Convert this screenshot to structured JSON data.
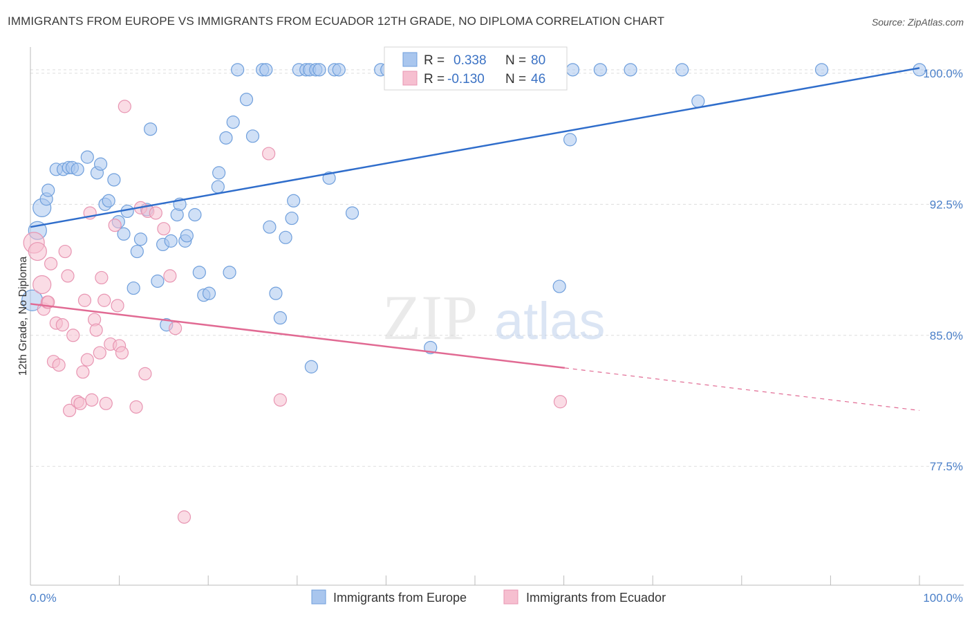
{
  "header": {
    "title": "IMMIGRANTS FROM EUROPE VS IMMIGRANTS FROM ECUADOR 12TH GRADE, NO DIPLOMA CORRELATION CHART",
    "source": "Source: ZipAtlas.com"
  },
  "watermark": {
    "zip": "ZIP",
    "atlas": "atlas"
  },
  "colors": {
    "europe_fill": "#a9c6ee",
    "europe_stroke": "#6f9fdc",
    "europe_line": "#2f6dcb",
    "ecuador_fill": "#f6bfd0",
    "ecuador_stroke": "#e895b2",
    "ecuador_line": "#e16a93",
    "tick_text": "#4a7fc8",
    "grid": "#dddddd"
  },
  "legend_box": {
    "rows": [
      {
        "r_label": "R =",
        "r_value": "0.338",
        "n_label": "N =",
        "n_value": "80"
      },
      {
        "r_label": "R =",
        "r_value": "-0.130",
        "n_label": "N =",
        "n_value": "46"
      }
    ]
  },
  "chart_data": {
    "type": "scatter",
    "title": "IMMIGRANTS FROM EUROPE VS IMMIGRANTS FROM ECUADOR 12TH GRADE, NO DIPLOMA CORRELATION CHART",
    "xlabel": "",
    "ylabel": "12th Grade, No Diploma",
    "xlim": [
      0,
      100
    ],
    "ylim": [
      70.7,
      101.5
    ],
    "x_tick_labels": [
      "0.0%",
      "100.0%"
    ],
    "y_ticks": [
      77.5,
      85.0,
      92.5,
      100.0
    ],
    "y_tick_labels": [
      "77.5%",
      "85.0%",
      "92.5%",
      "100.0%"
    ],
    "grid": true,
    "legend_placement": "bottom-center",
    "series": [
      {
        "name": "Immigrants from Europe",
        "R": 0.338,
        "N": 80,
        "trend": {
          "x": [
            0,
            100
          ],
          "y": [
            91.2,
            100.3
          ],
          "solid_to": 100
        },
        "points": [
          [
            0.2,
            87.0
          ],
          [
            0.8,
            91.0
          ],
          [
            1.3,
            92.3
          ],
          [
            1.8,
            92.8
          ],
          [
            2.0,
            93.3
          ],
          [
            2.9,
            94.5
          ],
          [
            3.7,
            94.5
          ],
          [
            4.3,
            94.6
          ],
          [
            4.7,
            94.6
          ],
          [
            5.3,
            94.5
          ],
          [
            6.4,
            95.2
          ],
          [
            7.5,
            94.3
          ],
          [
            7.9,
            94.8
          ],
          [
            8.4,
            92.5
          ],
          [
            8.8,
            92.7
          ],
          [
            9.4,
            93.9
          ],
          [
            9.9,
            91.5
          ],
          [
            10.5,
            90.8
          ],
          [
            10.9,
            92.1
          ],
          [
            11.6,
            87.7
          ],
          [
            12.0,
            89.8
          ],
          [
            12.4,
            90.5
          ],
          [
            13.1,
            92.2
          ],
          [
            13.5,
            96.8
          ],
          [
            14.3,
            88.1
          ],
          [
            14.9,
            90.2
          ],
          [
            15.3,
            85.6
          ],
          [
            15.8,
            90.4
          ],
          [
            16.5,
            91.9
          ],
          [
            16.8,
            92.5
          ],
          [
            17.4,
            90.4
          ],
          [
            17.6,
            90.7
          ],
          [
            18.5,
            91.9
          ],
          [
            19.0,
            88.6
          ],
          [
            19.5,
            87.3
          ],
          [
            20.1,
            87.4
          ],
          [
            21.1,
            93.5
          ],
          [
            21.2,
            94.3
          ],
          [
            22.0,
            96.3
          ],
          [
            22.4,
            88.6
          ],
          [
            22.8,
            97.2
          ],
          [
            23.3,
            100.2
          ],
          [
            24.3,
            98.5
          ],
          [
            25.0,
            96.4
          ],
          [
            26.1,
            100.2
          ],
          [
            26.5,
            100.2
          ],
          [
            26.9,
            91.2
          ],
          [
            27.6,
            87.4
          ],
          [
            28.1,
            86.0
          ],
          [
            28.7,
            90.6
          ],
          [
            29.4,
            91.7
          ],
          [
            29.6,
            92.7
          ],
          [
            30.2,
            100.2
          ],
          [
            31.0,
            100.2
          ],
          [
            31.4,
            100.2
          ],
          [
            31.6,
            83.2
          ],
          [
            32.1,
            100.2
          ],
          [
            32.5,
            100.2
          ],
          [
            33.6,
            94.0
          ],
          [
            34.2,
            100.2
          ],
          [
            34.7,
            100.2
          ],
          [
            36.2,
            92.0
          ],
          [
            39.4,
            100.2
          ],
          [
            40.1,
            100.2
          ],
          [
            45.0,
            84.3
          ],
          [
            47.6,
            100.2
          ],
          [
            49.0,
            100.2
          ],
          [
            51.2,
            100.2
          ],
          [
            52.0,
            100.2
          ],
          [
            56.4,
            100.2
          ],
          [
            59.2,
            100.2
          ],
          [
            59.5,
            87.8
          ],
          [
            60.7,
            96.2
          ],
          [
            61.0,
            100.2
          ],
          [
            64.1,
            100.2
          ],
          [
            67.5,
            100.2
          ],
          [
            73.3,
            100.2
          ],
          [
            75.1,
            98.4
          ],
          [
            89.0,
            100.2
          ],
          [
            100.0,
            100.2
          ]
        ]
      },
      {
        "name": "Immigrants from Ecuador",
        "R": -0.13,
        "N": 46,
        "trend": {
          "x": [
            0,
            100
          ],
          "y": [
            86.8,
            80.7
          ],
          "solid_to": 60.1
        },
        "points": [
          [
            0.4,
            90.3
          ],
          [
            0.8,
            89.8
          ],
          [
            1.3,
            87.9
          ],
          [
            1.5,
            86.5
          ],
          [
            1.9,
            86.9
          ],
          [
            2.0,
            86.9
          ],
          [
            2.3,
            89.1
          ],
          [
            2.6,
            83.5
          ],
          [
            2.9,
            85.7
          ],
          [
            3.2,
            83.3
          ],
          [
            3.6,
            85.6
          ],
          [
            3.9,
            89.8
          ],
          [
            4.2,
            88.4
          ],
          [
            4.4,
            80.7
          ],
          [
            4.8,
            85.0
          ],
          [
            5.3,
            81.2
          ],
          [
            5.6,
            81.1
          ],
          [
            5.9,
            82.9
          ],
          [
            6.1,
            87.0
          ],
          [
            6.4,
            83.6
          ],
          [
            6.7,
            92.0
          ],
          [
            6.9,
            81.3
          ],
          [
            7.2,
            85.9
          ],
          [
            7.4,
            85.3
          ],
          [
            7.8,
            84.0
          ],
          [
            8.0,
            88.3
          ],
          [
            8.3,
            87.0
          ],
          [
            8.5,
            81.1
          ],
          [
            9.0,
            84.5
          ],
          [
            9.5,
            91.3
          ],
          [
            9.8,
            86.7
          ],
          [
            10.0,
            84.4
          ],
          [
            10.3,
            84.0
          ],
          [
            10.6,
            98.1
          ],
          [
            11.9,
            80.9
          ],
          [
            12.4,
            92.3
          ],
          [
            12.9,
            82.8
          ],
          [
            13.2,
            92.1
          ],
          [
            14.1,
            92.0
          ],
          [
            15.0,
            91.1
          ],
          [
            15.7,
            88.4
          ],
          [
            16.3,
            85.4
          ],
          [
            17.3,
            74.6
          ],
          [
            26.8,
            95.4
          ],
          [
            28.1,
            81.3
          ],
          [
            59.6,
            81.2
          ]
        ]
      }
    ]
  },
  "bottom_legend": {
    "europe_label": "Immigrants from Europe",
    "ecuador_label": "Immigrants from Ecuador"
  }
}
